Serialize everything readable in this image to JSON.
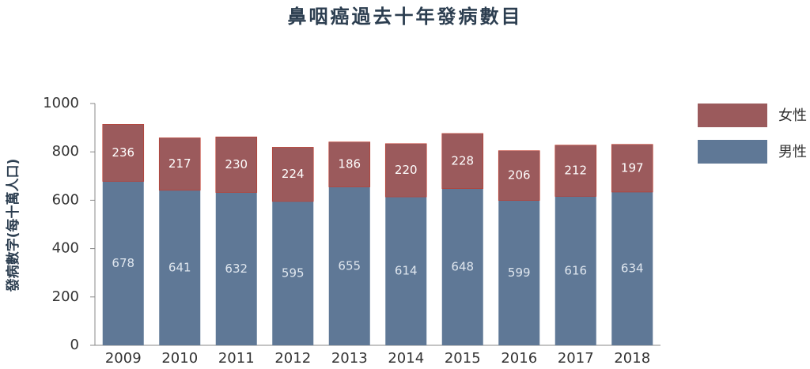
{
  "chart_data": {
    "type": "stacked_bar",
    "title": "鼻咽癌過去十年發病數目",
    "y_label": "發病數字(每十萬人口)",
    "categories": [
      "2009",
      "2010",
      "2011",
      "2012",
      "2013",
      "2014",
      "2015",
      "2016",
      "2017",
      "2018"
    ],
    "series": [
      {
        "name": "男性",
        "color": "#5f7896",
        "values": [
          678,
          641,
          632,
          595,
          655,
          614,
          648,
          599,
          616,
          634
        ]
      },
      {
        "name": "女性",
        "color": "#9b5a5c",
        "values": [
          236,
          217,
          230,
          224,
          186,
          220,
          228,
          206,
          212,
          197
        ]
      }
    ],
    "ylim": [
      0,
      1000
    ],
    "yticks": [
      0,
      200,
      400,
      600,
      800,
      1000
    ],
    "grid": false
  }
}
